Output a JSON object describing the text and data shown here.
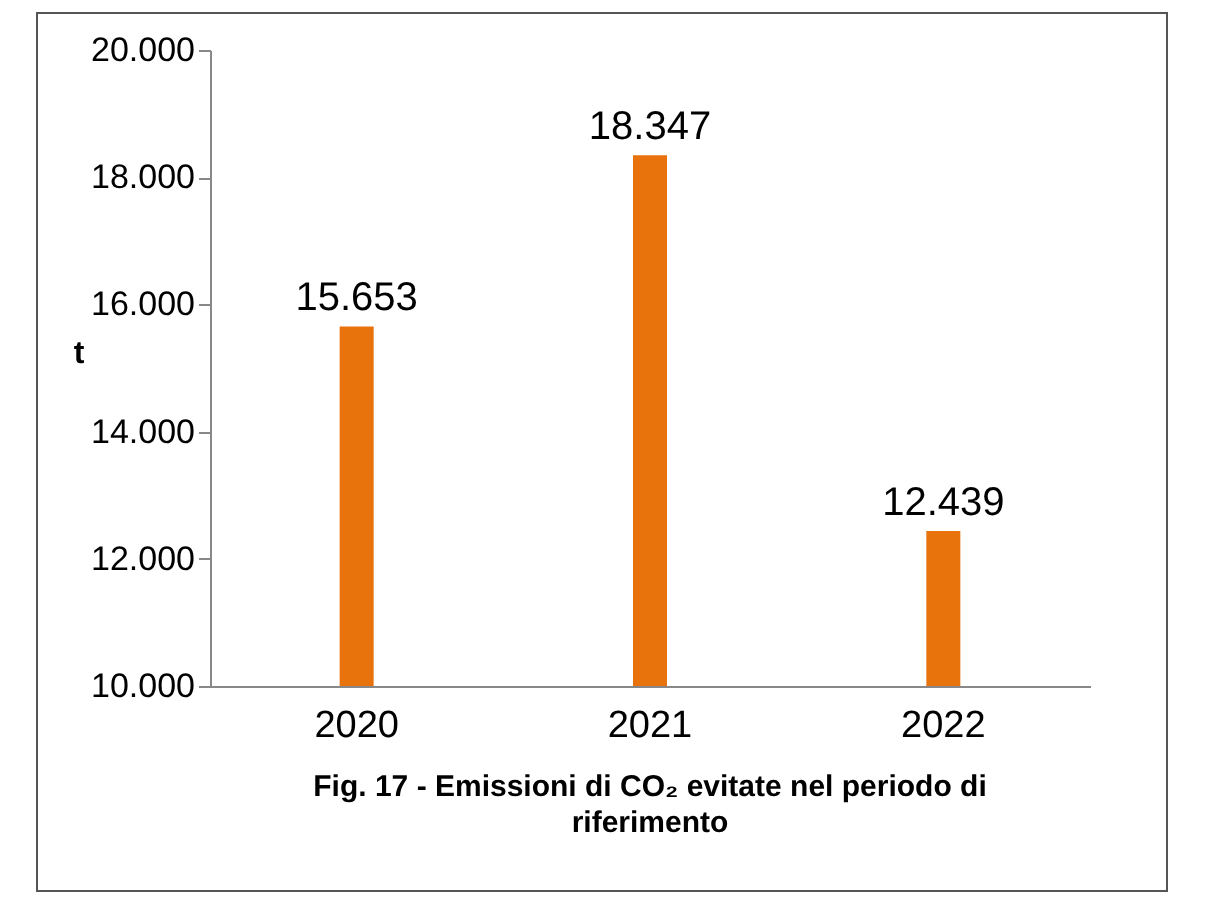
{
  "chart_data": {
    "type": "bar",
    "title": "Fig. 17 - Emissioni di CO₂ evitate nel periodo di riferimento",
    "ylabel": "t",
    "categories": [
      "2020",
      "2021",
      "2022"
    ],
    "values": [
      15653,
      18347,
      12439
    ],
    "value_labels": [
      "15.653",
      "18.347",
      "12.439"
    ],
    "color": "#e8720c",
    "ylim": [
      10000,
      20000
    ],
    "yticks": [
      {
        "value": 10000,
        "label": "10.000"
      },
      {
        "value": 12000,
        "label": "12.000"
      },
      {
        "value": 14000,
        "label": "14.000"
      },
      {
        "value": 16000,
        "label": "16.000"
      },
      {
        "value": 18000,
        "label": "18.000"
      },
      {
        "value": 20000,
        "label": "20.000"
      }
    ],
    "grid": false
  }
}
